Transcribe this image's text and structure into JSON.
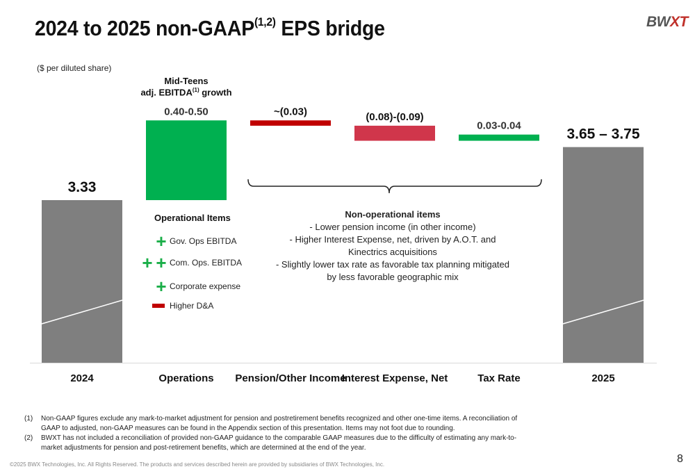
{
  "title": {
    "main": "2024 to 2025 non-GAAP",
    "sup": "(1,2)",
    "rest": " EPS bridge"
  },
  "logo": {
    "text_a": "BW",
    "text_b": "XT"
  },
  "units_label": "($ per diluted share)",
  "colors": {
    "base_bar": "#7f7f7f",
    "positive": "#00b050",
    "negative": "#c00000",
    "negative_light": "#d0364b"
  },
  "operations_header": {
    "line1": "Mid-Teens",
    "line2": "adj. EBITDA",
    "line2_sup": "(1)",
    "line3": " growth"
  },
  "operational_items": {
    "title": "Operational Items",
    "items": [
      {
        "icon": "plus-icon",
        "count": 1,
        "label": "Gov. Ops EBITDA"
      },
      {
        "icon": "double-plus-icon",
        "count": 2,
        "label": "Com. Ops. EBITDA"
      },
      {
        "icon": "plus-icon",
        "count": 1,
        "label": "Corporate expense"
      },
      {
        "icon": "minus-icon",
        "count": 0,
        "label": "Higher D&A"
      }
    ]
  },
  "non_operational_items": {
    "title": "Non-operational items",
    "lines": [
      "-  Lower pension income (in other income)",
      "- Higher Interest Expense, net, driven by A.O.T. and Kinectrics acquisitions",
      "- Slightly lower tax rate as favorable tax planning mitigated by less favorable geographic mix"
    ]
  },
  "chart_data": {
    "type": "bar",
    "subtype": "waterfall",
    "categories": [
      "2024",
      "Operations",
      "Pension/Other Income",
      "Interest Expense, Net",
      "Tax Rate",
      "2025"
    ],
    "data_labels": [
      "3.33",
      "0.40-0.50",
      "~(0.03)",
      "(0.08)-(0.09)",
      "0.03-0.04",
      "3.65 – 3.75"
    ],
    "steps": [
      {
        "category": "2024",
        "kind": "total",
        "low": 3.33,
        "high": 3.33
      },
      {
        "category": "Operations",
        "kind": "increase",
        "low": 0.4,
        "high": 0.5
      },
      {
        "category": "Pension/Other Income",
        "kind": "decrease",
        "low": -0.03,
        "high": -0.03
      },
      {
        "category": "Interest Expense, Net",
        "kind": "decrease",
        "low": -0.09,
        "high": -0.08
      },
      {
        "category": "Tax Rate",
        "kind": "increase",
        "low": 0.03,
        "high": 0.04
      },
      {
        "category": "2025",
        "kind": "total",
        "low": 3.65,
        "high": 3.75
      }
    ],
    "axis_broken": true,
    "grid": false,
    "legend": "none"
  },
  "footnotes": [
    {
      "num": "(1)",
      "text": "Non-GAAP figures exclude any mark-to-market adjustment for pension and postretirement benefits recognized and other one-time items.  A reconciliation of GAAP to adjusted, non-GAAP measures can be found in the Appendix section of this presentation. Items may not foot due to rounding."
    },
    {
      "num": "(2)",
      "text": "BWXT has not included a reconciliation of provided non-GAAP guidance to the comparable GAAP measures due to the difficulty of estimating any mark-to-market adjustments for pension and post-retirement benefits, which are determined at the end of the year."
    }
  ],
  "copyright": "©2025 BWX Technologies, Inc. All Rights Reserved.   The products and services described herein are provided by subsidiaries of BWX Technologies, Inc.",
  "page_number": "8"
}
